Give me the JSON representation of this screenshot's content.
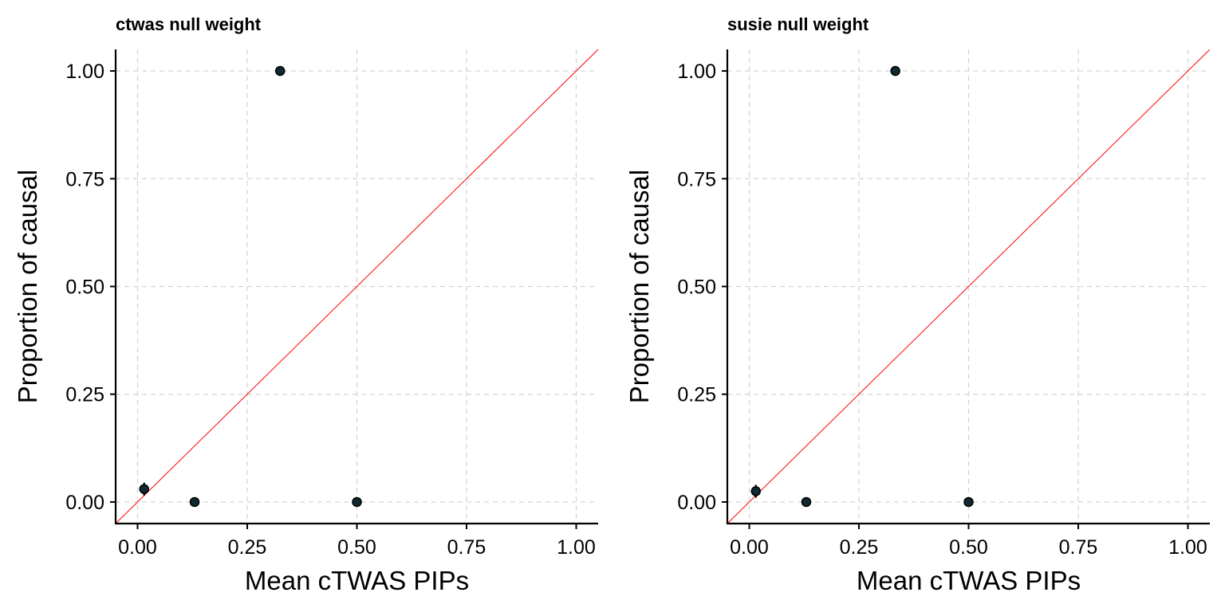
{
  "chart_data": [
    {
      "type": "scatter",
      "title": "ctwas null weight",
      "xlabel": "Mean cTWAS PIPs",
      "ylabel": "Proportion of causal",
      "xlim": [
        -0.05,
        1.05
      ],
      "ylim": [
        -0.05,
        1.05
      ],
      "xticks": [
        "0.00",
        "0.25",
        "0.50",
        "0.75",
        "1.00"
      ],
      "yticks": [
        "0.00",
        "0.25",
        "0.50",
        "0.75",
        "1.00"
      ],
      "grid": true,
      "reference_line": "y = x",
      "reference_color": "#ff0000",
      "points": [
        {
          "x": 0.015,
          "y": 0.03,
          "ylow": 0.015,
          "yhigh": 0.045
        },
        {
          "x": 0.13,
          "y": 0.0
        },
        {
          "x": 0.325,
          "y": 1.0
        },
        {
          "x": 0.5,
          "y": 0.0
        }
      ]
    },
    {
      "type": "scatter",
      "title": "susie null weight",
      "xlabel": "Mean cTWAS PIPs",
      "ylabel": "Proportion of causal",
      "xlim": [
        -0.05,
        1.05
      ],
      "ylim": [
        -0.05,
        1.05
      ],
      "xticks": [
        "0.00",
        "0.25",
        "0.50",
        "0.75",
        "1.00"
      ],
      "yticks": [
        "0.00",
        "0.25",
        "0.50",
        "0.75",
        "1.00"
      ],
      "grid": true,
      "reference_line": "y = x",
      "reference_color": "#ff0000",
      "points": [
        {
          "x": 0.015,
          "y": 0.025,
          "ylow": 0.01,
          "yhigh": 0.04
        },
        {
          "x": 0.13,
          "y": 0.0
        },
        {
          "x": 0.333,
          "y": 1.0
        },
        {
          "x": 0.5,
          "y": 0.0
        }
      ]
    }
  ]
}
